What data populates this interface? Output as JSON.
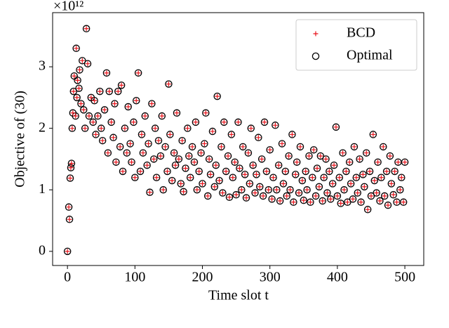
{
  "chart_data": {
    "type": "scatter",
    "xlabel": "Time slot t",
    "ylabel": "Objective of (30)",
    "y_offset_text": "×10¹²",
    "xlim": [
      -22,
      528
    ],
    "ylim": [
      -0.23,
      3.88
    ],
    "xticks": [
      0,
      100,
      200,
      300,
      400,
      500
    ],
    "yticks": [
      0,
      1,
      2,
      3
    ],
    "legend": "upper right",
    "x": [
      0,
      2,
      3,
      4,
      5,
      6,
      7,
      8,
      9,
      10,
      12,
      13,
      14,
      15,
      17,
      18,
      20,
      22,
      24,
      26,
      28,
      30,
      32,
      35,
      38,
      40,
      42,
      45,
      48,
      50,
      52,
      55,
      58,
      60,
      62,
      65,
      68,
      70,
      72,
      75,
      78,
      80,
      82,
      85,
      88,
      90,
      93,
      95,
      98,
      100,
      102,
      105,
      108,
      110,
      112,
      115,
      118,
      120,
      122,
      125,
      128,
      130,
      132,
      135,
      138,
      140,
      142,
      145,
      148,
      150,
      152,
      155,
      158,
      160,
      162,
      165,
      168,
      170,
      172,
      175,
      178,
      180,
      182,
      185,
      188,
      190,
      192,
      195,
      198,
      200,
      203,
      205,
      208,
      210,
      212,
      215,
      218,
      220,
      222,
      225,
      228,
      230,
      232,
      235,
      238,
      240,
      243,
      245,
      248,
      250,
      253,
      255,
      258,
      260,
      263,
      265,
      268,
      270,
      272,
      275,
      278,
      280,
      283,
      285,
      288,
      290,
      292,
      295,
      298,
      300,
      303,
      305,
      308,
      310,
      313,
      315,
      318,
      320,
      323,
      325,
      328,
      330,
      333,
      335,
      338,
      340,
      343,
      345,
      348,
      350,
      353,
      355,
      358,
      360,
      363,
      365,
      368,
      370,
      373,
      375,
      378,
      380,
      383,
      385,
      388,
      390,
      393,
      395,
      398,
      400,
      403,
      405,
      408,
      410,
      413,
      415,
      418,
      420,
      423,
      425,
      428,
      430,
      433,
      435,
      438,
      440,
      443,
      445,
      448,
      450,
      453,
      455,
      458,
      460,
      463,
      465,
      468,
      470,
      473,
      475,
      478,
      480,
      483,
      485,
      488,
      490,
      493,
      495,
      498,
      500
    ],
    "series": [
      {
        "name": "BCD",
        "marker": "plus",
        "color": "#e8121a",
        "values": [
          0,
          0.72,
          0.52,
          1.19,
          1.36,
          1.43,
          2.0,
          2.25,
          2.6,
          2.85,
          2.2,
          3.3,
          2.5,
          2.78,
          2.65,
          2.95,
          2.4,
          3.1,
          2.3,
          2.0,
          3.62,
          3.05,
          2.2,
          2.5,
          2.1,
          2.45,
          1.9,
          2.2,
          2.6,
          2.0,
          1.8,
          2.3,
          2.9,
          1.6,
          2.6,
          2.1,
          1.85,
          2.4,
          1.45,
          2.6,
          1.7,
          2.7,
          1.3,
          2.0,
          1.6,
          2.35,
          1.75,
          1.45,
          2.1,
          1.2,
          2.45,
          2.9,
          1.3,
          1.9,
          1.6,
          2.2,
          1.4,
          1.75,
          0.96,
          2.4,
          1.5,
          2.0,
          1.2,
          1.8,
          1.55,
          2.2,
          1.0,
          1.7,
          1.3,
          2.72,
          1.9,
          1.15,
          1.6,
          1.4,
          2.25,
          1.5,
          1.1,
          1.8,
          0.97,
          1.35,
          2.0,
          1.55,
          1.2,
          1.7,
          1.45,
          2.1,
          1.0,
          1.3,
          1.6,
          1.1,
          1.75,
          2.25,
          0.9,
          1.5,
          1.25,
          1.95,
          1.05,
          1.4,
          2.52,
          1.15,
          1.7,
          0.95,
          2.1,
          1.3,
          1.55,
          0.88,
          1.9,
          1.2,
          1.45,
          0.92,
          2.1,
          1.35,
          1.0,
          1.7,
          1.25,
          0.87,
          1.6,
          1.1,
          2.0,
          1.4,
          0.95,
          1.25,
          1.85,
          1.05,
          1.5,
          0.9,
          2.1,
          1.3,
          1.0,
          1.65,
          0.85,
          1.2,
          2.05,
          1.0,
          1.4,
          0.82,
          1.75,
          1.1,
          1.3,
          0.9,
          1.55,
          1.0,
          1.9,
          0.8,
          1.25,
          1.45,
          0.95,
          1.7,
          1.15,
          0.83,
          1.3,
          1.0,
          1.55,
          0.8,
          1.2,
          1.65,
          0.9,
          1.35,
          1.05,
          1.55,
          0.82,
          1.2,
          1.5,
          0.95,
          1.3,
          0.85,
          1.1,
          1.4,
          2.02,
          0.9,
          1.2,
          0.78,
          1.6,
          1.0,
          1.3,
          0.8,
          1.45,
          1.1,
          0.85,
          1.7,
          1.2,
          0.95,
          1.5,
          0.8,
          1.25,
          1.05,
          1.6,
          0.68,
          1.3,
          0.9,
          1.9,
          1.15,
          0.95,
          1.45,
          0.82,
          1.2,
          1.7,
          0.9,
          1.3,
          0.75,
          1.55,
          1.1,
          0.92,
          1.3,
          0.8,
          1.45,
          1.0,
          1.2,
          0.8,
          1.45
        ]
      },
      {
        "name": "Optimal",
        "marker": "circle",
        "color": "#000000",
        "values": [
          0,
          0.72,
          0.52,
          1.19,
          1.36,
          1.43,
          2.0,
          2.25,
          2.6,
          2.85,
          2.2,
          3.3,
          2.5,
          2.78,
          2.65,
          2.95,
          2.4,
          3.1,
          2.3,
          2.0,
          3.62,
          3.05,
          2.2,
          2.5,
          2.1,
          2.45,
          1.9,
          2.2,
          2.6,
          2.0,
          1.8,
          2.3,
          2.9,
          1.6,
          2.6,
          2.1,
          1.85,
          2.4,
          1.45,
          2.6,
          1.7,
          2.7,
          1.3,
          2.0,
          1.6,
          2.35,
          1.75,
          1.45,
          2.1,
          1.2,
          2.45,
          2.9,
          1.3,
          1.9,
          1.6,
          2.2,
          1.4,
          1.75,
          0.96,
          2.4,
          1.5,
          2.0,
          1.2,
          1.8,
          1.55,
          2.2,
          1.0,
          1.7,
          1.3,
          2.72,
          1.9,
          1.15,
          1.6,
          1.4,
          2.25,
          1.5,
          1.1,
          1.8,
          0.97,
          1.35,
          2.0,
          1.55,
          1.2,
          1.7,
          1.45,
          2.1,
          1.0,
          1.3,
          1.6,
          1.1,
          1.75,
          2.25,
          0.9,
          1.5,
          1.25,
          1.95,
          1.05,
          1.4,
          2.52,
          1.15,
          1.7,
          0.95,
          2.1,
          1.3,
          1.55,
          0.88,
          1.9,
          1.2,
          1.45,
          0.92,
          2.1,
          1.35,
          1.0,
          1.7,
          1.25,
          0.87,
          1.6,
          1.1,
          2.0,
          1.4,
          0.95,
          1.25,
          1.85,
          1.05,
          1.5,
          0.9,
          2.1,
          1.3,
          1.0,
          1.65,
          0.85,
          1.2,
          2.05,
          1.0,
          1.4,
          0.82,
          1.75,
          1.1,
          1.3,
          0.9,
          1.55,
          1.0,
          1.9,
          0.8,
          1.25,
          1.45,
          0.95,
          1.7,
          1.15,
          0.83,
          1.3,
          1.0,
          1.55,
          0.8,
          1.2,
          1.65,
          0.9,
          1.35,
          1.05,
          1.55,
          0.82,
          1.2,
          1.5,
          0.95,
          1.3,
          0.85,
          1.1,
          1.4,
          2.02,
          0.9,
          1.2,
          0.78,
          1.6,
          1.0,
          1.3,
          0.8,
          1.45,
          1.1,
          0.85,
          1.7,
          1.2,
          0.95,
          1.5,
          0.8,
          1.25,
          1.05,
          1.6,
          0.68,
          1.3,
          0.9,
          1.9,
          1.15,
          0.95,
          1.45,
          0.82,
          1.2,
          1.7,
          0.9,
          1.3,
          0.75,
          1.55,
          1.1,
          0.92,
          1.3,
          0.8,
          1.45,
          1.0,
          1.2,
          0.8,
          1.45
        ]
      }
    ]
  }
}
